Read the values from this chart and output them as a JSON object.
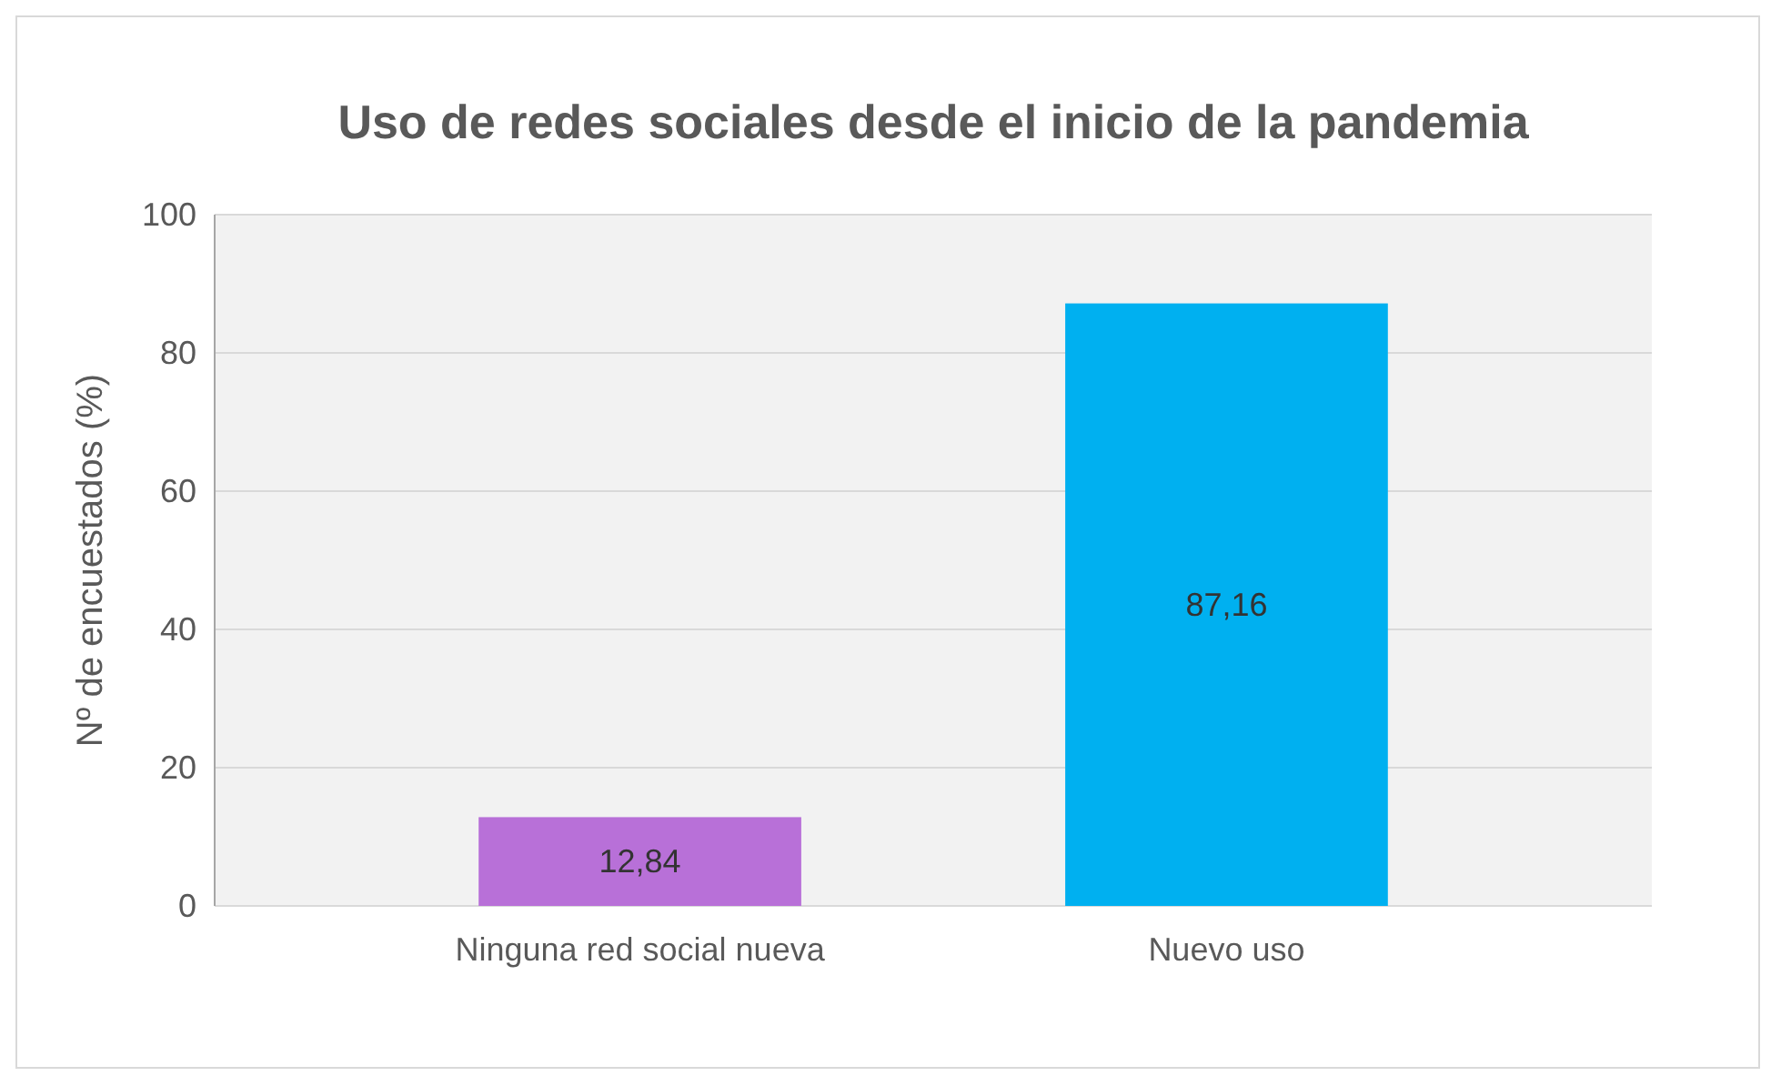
{
  "chart_data": {
    "type": "bar",
    "title": "Uso de redes sociales desde el inicio de la pandemia",
    "ylabel": "Nº de encuestados (%)",
    "categories": [
      "Ninguna red social nueva",
      "Nuevo uso"
    ],
    "values": [
      12.84,
      87.16
    ],
    "colors": [
      "#b870d8",
      "#00b0f0"
    ],
    "value_labels": [
      "12,84",
      "87,16"
    ],
    "ylim": [
      0,
      100
    ],
    "yticks": [
      0,
      20,
      40,
      60,
      80,
      100
    ],
    "grid": "y"
  }
}
